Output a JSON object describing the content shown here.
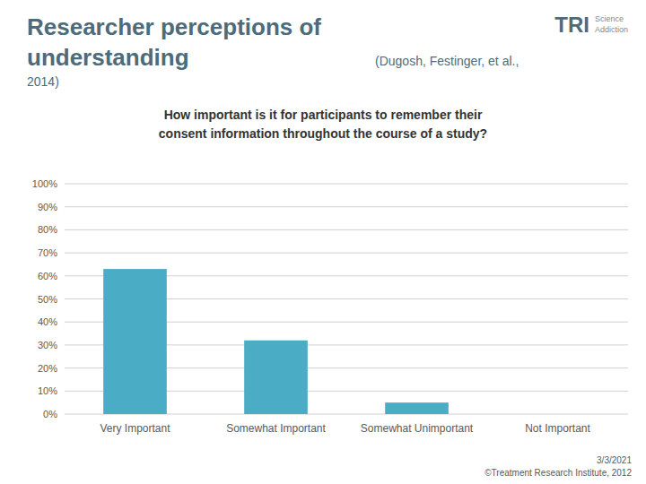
{
  "chart_data": {
    "type": "bar",
    "title": "Researcher perceptions of understanding",
    "subtitle": "How important is it for participants to remember their\nconsent information throughout the course of a study?",
    "categories": [
      "Very Important",
      "Somewhat Important",
      "Somewhat Unimportant",
      "Not Important"
    ],
    "values": [
      63,
      32,
      5,
      0
    ],
    "color": "#4BACC6",
    "ylim": [
      0,
      100
    ],
    "yticks": [
      {
        "value": 0,
        "label": "0%"
      },
      {
        "value": 10,
        "label": "10%"
      },
      {
        "value": 20,
        "label": "20%"
      },
      {
        "value": 30,
        "label": "30%"
      },
      {
        "value": 40,
        "label": "40%"
      },
      {
        "value": 50,
        "label": "50%"
      },
      {
        "value": 60,
        "label": "60%"
      },
      {
        "value": 70,
        "label": "70%"
      },
      {
        "value": 80,
        "label": "80%"
      },
      {
        "value": 90,
        "label": "90%"
      },
      {
        "value": 100,
        "label": "100%"
      }
    ],
    "grid": true,
    "annotations": [
      "(Dugosh, Festinger, et al., 2014)",
      "TRI",
      "Science\nAddiction",
      "3/3/2021",
      "©Treatment Research Institute, 2012"
    ]
  }
}
